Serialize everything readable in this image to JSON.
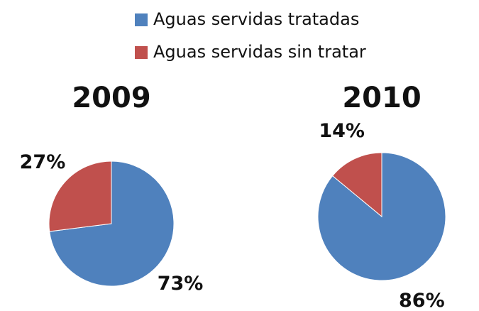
{
  "legend": [
    {
      "name": "Aguas servidas tratadas",
      "color": "#4f81bd"
    },
    {
      "name": "Aguas servidas sin tratar",
      "color": "#c0504d"
    }
  ],
  "chart_data": [
    {
      "type": "pie",
      "title": "2009",
      "values": [
        73,
        27
      ],
      "value_labels": [
        "73%",
        "27%"
      ]
    },
    {
      "type": "pie",
      "title": "2010",
      "values": [
        86,
        14
      ],
      "value_labels": [
        "86%",
        "14%"
      ]
    }
  ]
}
